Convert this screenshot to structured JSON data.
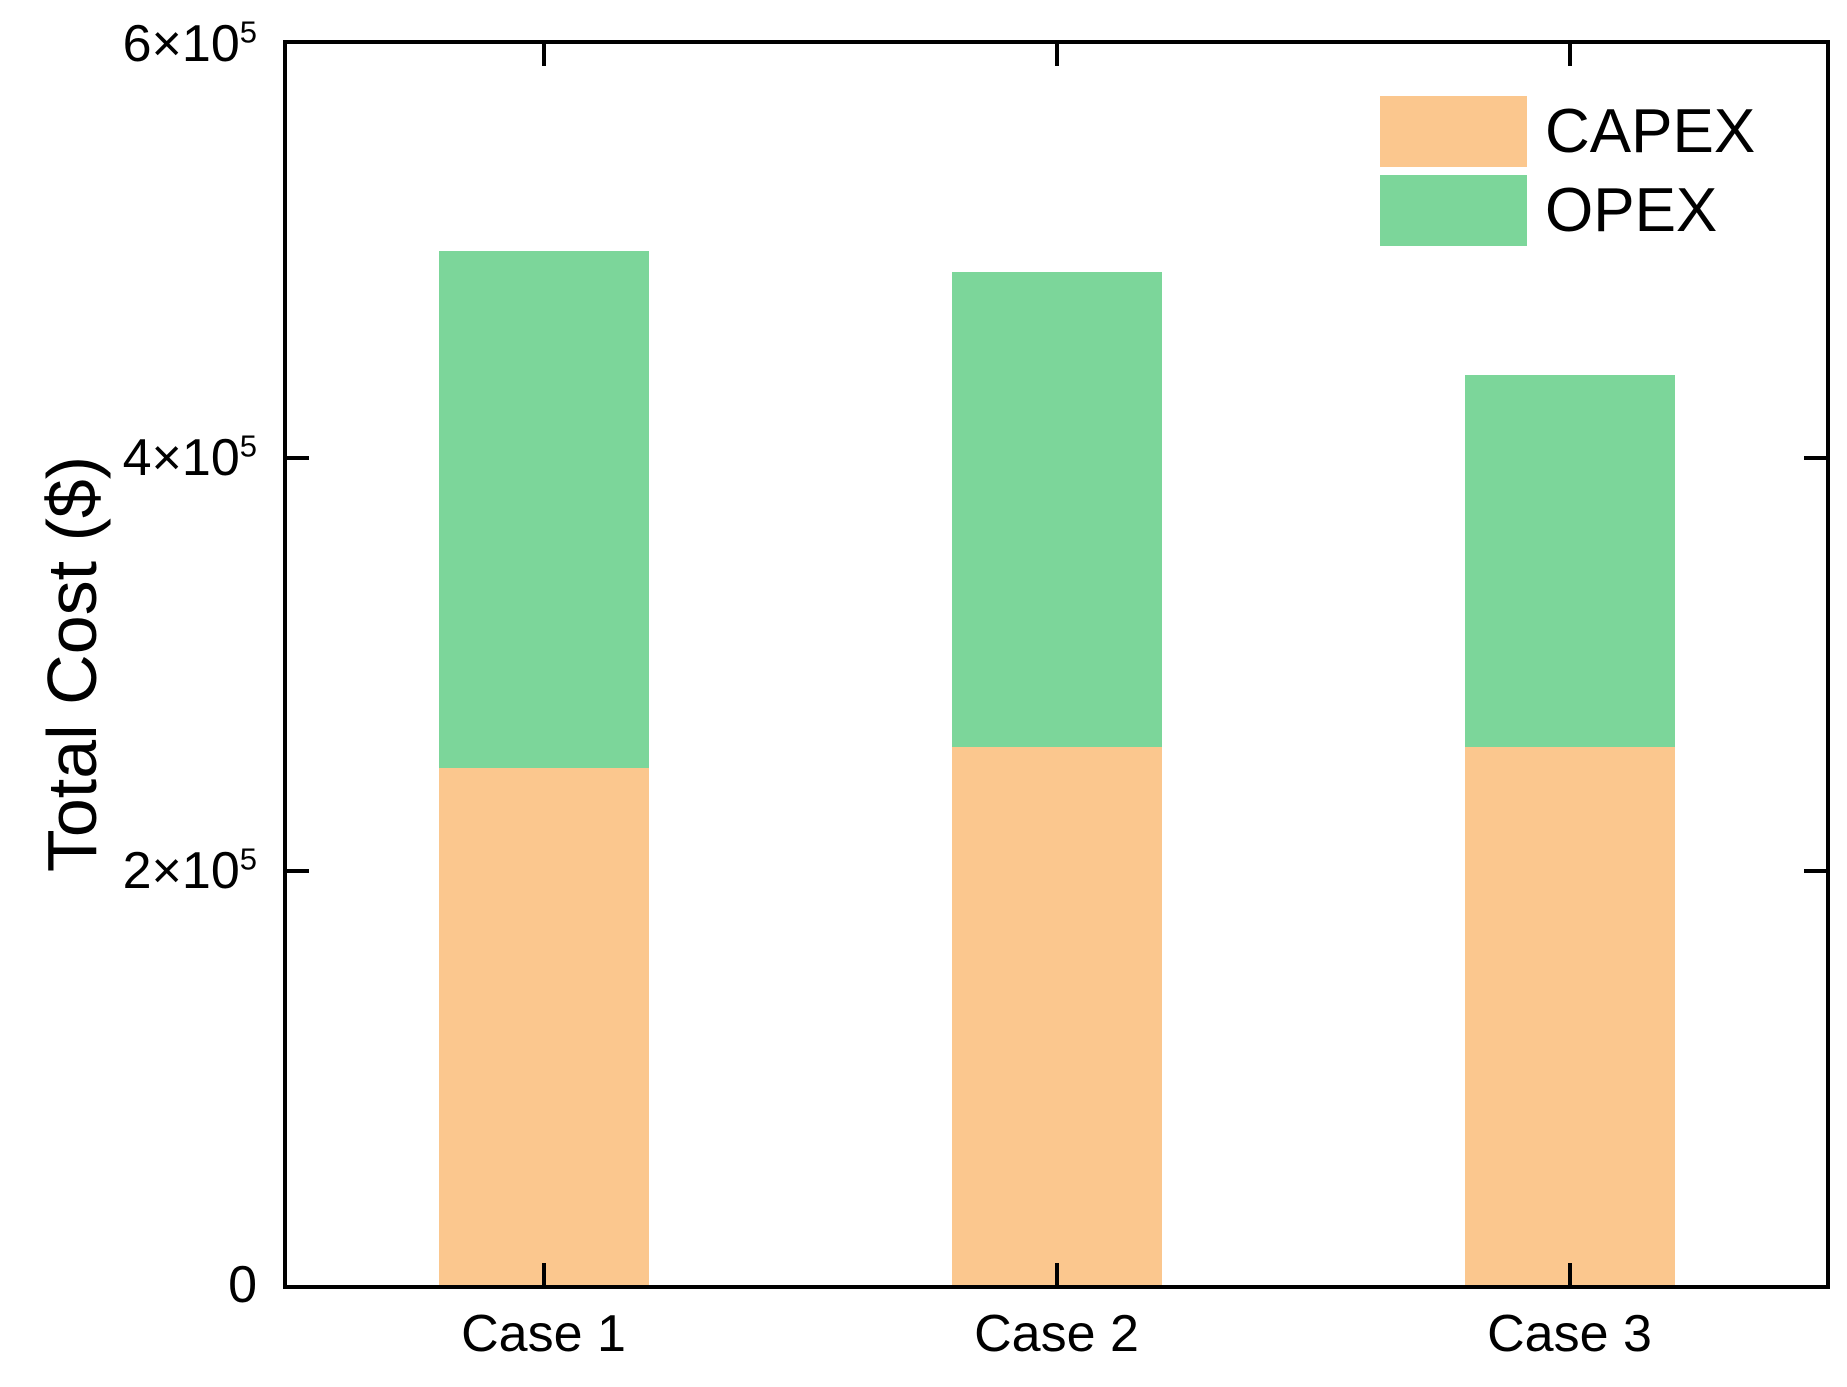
{
  "chart_data": {
    "type": "bar",
    "stacked": true,
    "title": "",
    "xlabel": "",
    "ylabel": "Total Cost ($)",
    "categories": [
      "Case 1",
      "Case 2",
      "Case 3"
    ],
    "series": [
      {
        "name": "CAPEX",
        "color": "#FBC78E",
        "values": [
          250000,
          260000,
          260000
        ]
      },
      {
        "name": "OPEX",
        "color": "#7CD69A",
        "values": [
          250000,
          230000,
          180000
        ]
      }
    ],
    "ylim": [
      0,
      600000
    ],
    "ytick_values": [
      0,
      200000,
      400000,
      600000
    ],
    "ytick_labels": [
      {
        "text": "0",
        "sup": ""
      },
      {
        "text": "2×10",
        "sup": "5"
      },
      {
        "text": "4×10",
        "sup": "5"
      },
      {
        "text": "6×10",
        "sup": "5"
      }
    ],
    "grid": false,
    "legend_position": "top-right",
    "axis_color": "#000000",
    "background_color": "#ffffff"
  },
  "legend": {
    "items": [
      {
        "label": "CAPEX",
        "color": "#FBC78E"
      },
      {
        "label": "OPEX",
        "color": "#7CD69A"
      }
    ]
  }
}
